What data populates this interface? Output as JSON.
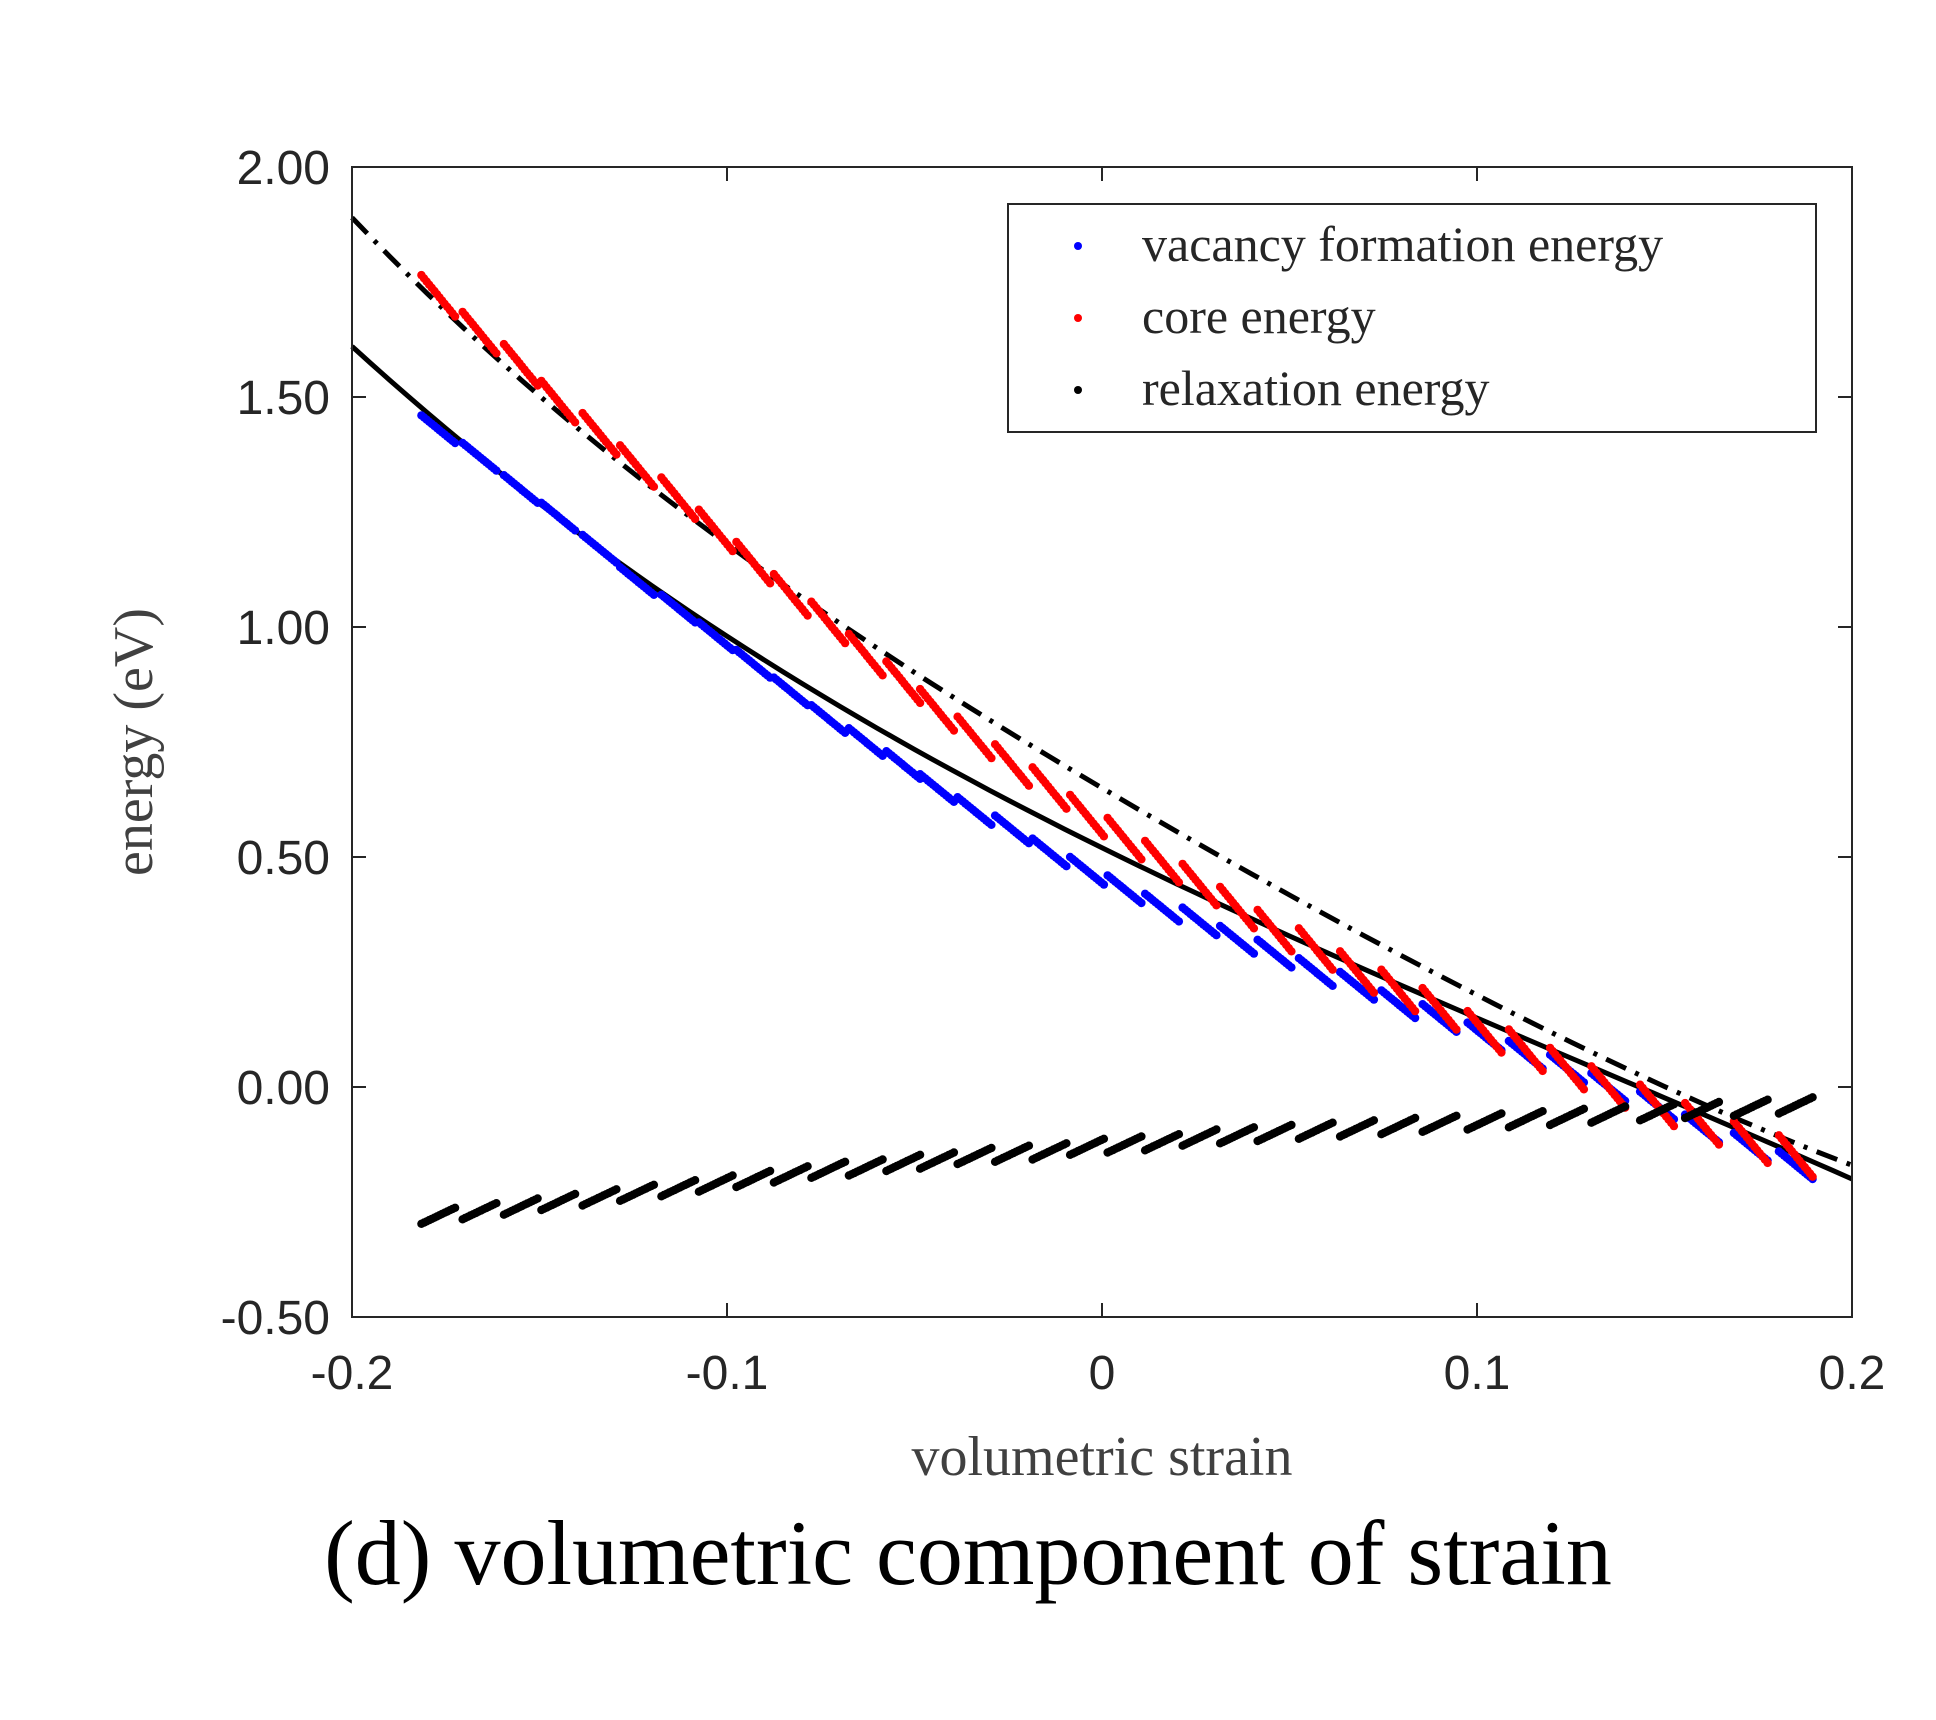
{
  "caption": "(d) volumetric component of strain",
  "chart_data": {
    "type": "scatter",
    "xlabel": "volumetric strain",
    "ylabel": "energy (eV)",
    "xlim": [
      -0.2,
      0.2
    ],
    "ylim": [
      -0.5,
      2.0
    ],
    "xticks": [
      "-0.2",
      "-0.1",
      "0",
      "0.1",
      "0.2"
    ],
    "xtick_values": [
      -0.2,
      -0.1,
      0,
      0.1,
      0.2
    ],
    "yticks": [
      "-0.50",
      "0.00",
      "0.50",
      "1.00",
      "1.50",
      "2.00"
    ],
    "ytick_values": [
      -0.5,
      0.0,
      0.5,
      1.0,
      1.5,
      2.0
    ],
    "grid": false,
    "legend_position": "top-right",
    "series": [
      {
        "name": "vacancy formation energy",
        "color": "#0000ff",
        "marker": "point",
        "clusters": [
          [
            -0.177,
            1.43
          ],
          [
            -0.166,
            1.37
          ],
          [
            -0.155,
            1.3
          ],
          [
            -0.145,
            1.24
          ],
          [
            -0.134,
            1.17
          ],
          [
            -0.124,
            1.1
          ],
          [
            -0.113,
            1.04
          ],
          [
            -0.103,
            0.98
          ],
          [
            -0.093,
            0.92
          ],
          [
            -0.083,
            0.86
          ],
          [
            -0.073,
            0.8
          ],
          [
            -0.063,
            0.75
          ],
          [
            -0.053,
            0.7
          ],
          [
            -0.044,
            0.65
          ],
          [
            -0.034,
            0.6
          ],
          [
            -0.024,
            0.56
          ],
          [
            -0.014,
            0.51
          ],
          [
            -0.004,
            0.47
          ],
          [
            0.006,
            0.43
          ],
          [
            0.016,
            0.39
          ],
          [
            0.026,
            0.36
          ],
          [
            0.036,
            0.32
          ],
          [
            0.046,
            0.29
          ],
          [
            0.057,
            0.25
          ],
          [
            0.068,
            0.22
          ],
          [
            0.079,
            0.18
          ],
          [
            0.09,
            0.15
          ],
          [
            0.102,
            0.11
          ],
          [
            0.113,
            0.07
          ],
          [
            0.124,
            0.04
          ],
          [
            0.135,
            0.0
          ],
          [
            0.148,
            -0.04
          ],
          [
            0.16,
            -0.09
          ],
          [
            0.173,
            -0.13
          ],
          [
            0.185,
            -0.17
          ]
        ]
      },
      {
        "name": "core energy",
        "color": "#ff0000",
        "marker": "point",
        "clusters": [
          [
            -0.177,
            1.72
          ],
          [
            -0.166,
            1.64
          ],
          [
            -0.155,
            1.57
          ],
          [
            -0.145,
            1.49
          ],
          [
            -0.134,
            1.42
          ],
          [
            -0.124,
            1.35
          ],
          [
            -0.113,
            1.28
          ],
          [
            -0.103,
            1.21
          ],
          [
            -0.093,
            1.14
          ],
          [
            -0.083,
            1.07
          ],
          [
            -0.073,
            1.01
          ],
          [
            -0.063,
            0.94
          ],
          [
            -0.053,
            0.88
          ],
          [
            -0.044,
            0.82
          ],
          [
            -0.034,
            0.76
          ],
          [
            -0.024,
            0.7
          ],
          [
            -0.014,
            0.65
          ],
          [
            -0.004,
            0.59
          ],
          [
            0.006,
            0.54
          ],
          [
            0.016,
            0.49
          ],
          [
            0.026,
            0.44
          ],
          [
            0.036,
            0.39
          ],
          [
            0.046,
            0.34
          ],
          [
            0.057,
            0.3
          ],
          [
            0.068,
            0.25
          ],
          [
            0.079,
            0.21
          ],
          [
            0.09,
            0.17
          ],
          [
            0.102,
            0.12
          ],
          [
            0.113,
            0.08
          ],
          [
            0.124,
            0.04
          ],
          [
            0.135,
            0.0
          ],
          [
            0.148,
            -0.04
          ],
          [
            0.16,
            -0.08
          ],
          [
            0.173,
            -0.12
          ],
          [
            0.185,
            -0.15
          ]
        ]
      },
      {
        "name": "relaxation energy",
        "color": "#000000",
        "marker": "point",
        "clusters": [
          [
            -0.177,
            -0.28
          ],
          [
            -0.166,
            -0.27
          ],
          [
            -0.155,
            -0.26
          ],
          [
            -0.145,
            -0.25
          ],
          [
            -0.134,
            -0.24
          ],
          [
            -0.124,
            -0.23
          ],
          [
            -0.113,
            -0.22
          ],
          [
            -0.103,
            -0.21
          ],
          [
            -0.093,
            -0.2
          ],
          [
            -0.083,
            -0.19
          ],
          [
            -0.073,
            -0.18
          ],
          [
            -0.063,
            -0.175
          ],
          [
            -0.053,
            -0.165
          ],
          [
            -0.044,
            -0.16
          ],
          [
            -0.034,
            -0.15
          ],
          [
            -0.024,
            -0.145
          ],
          [
            -0.014,
            -0.14
          ],
          [
            -0.004,
            -0.13
          ],
          [
            0.006,
            -0.125
          ],
          [
            0.016,
            -0.12
          ],
          [
            0.026,
            -0.11
          ],
          [
            0.036,
            -0.105
          ],
          [
            0.046,
            -0.1
          ],
          [
            0.057,
            -0.095
          ],
          [
            0.068,
            -0.09
          ],
          [
            0.079,
            -0.085
          ],
          [
            0.09,
            -0.08
          ],
          [
            0.102,
            -0.075
          ],
          [
            0.113,
            -0.07
          ],
          [
            0.124,
            -0.065
          ],
          [
            0.135,
            -0.06
          ],
          [
            0.148,
            -0.055
          ],
          [
            0.16,
            -0.05
          ],
          [
            0.173,
            -0.045
          ],
          [
            0.185,
            -0.04
          ]
        ]
      }
    ],
    "fits": [
      {
        "style": "solid",
        "color": "#000000",
        "x": [
          -0.2,
          -0.1,
          0.0,
          0.1,
          0.2
        ],
        "y": [
          1.61,
          0.98,
          0.52,
          0.15,
          -0.2
        ]
      },
      {
        "style": "dash-dot",
        "color": "#000000",
        "x": [
          -0.2,
          -0.1,
          0.0,
          0.1,
          0.2
        ],
        "y": [
          1.89,
          1.18,
          0.65,
          0.2,
          -0.17
        ]
      }
    ]
  }
}
